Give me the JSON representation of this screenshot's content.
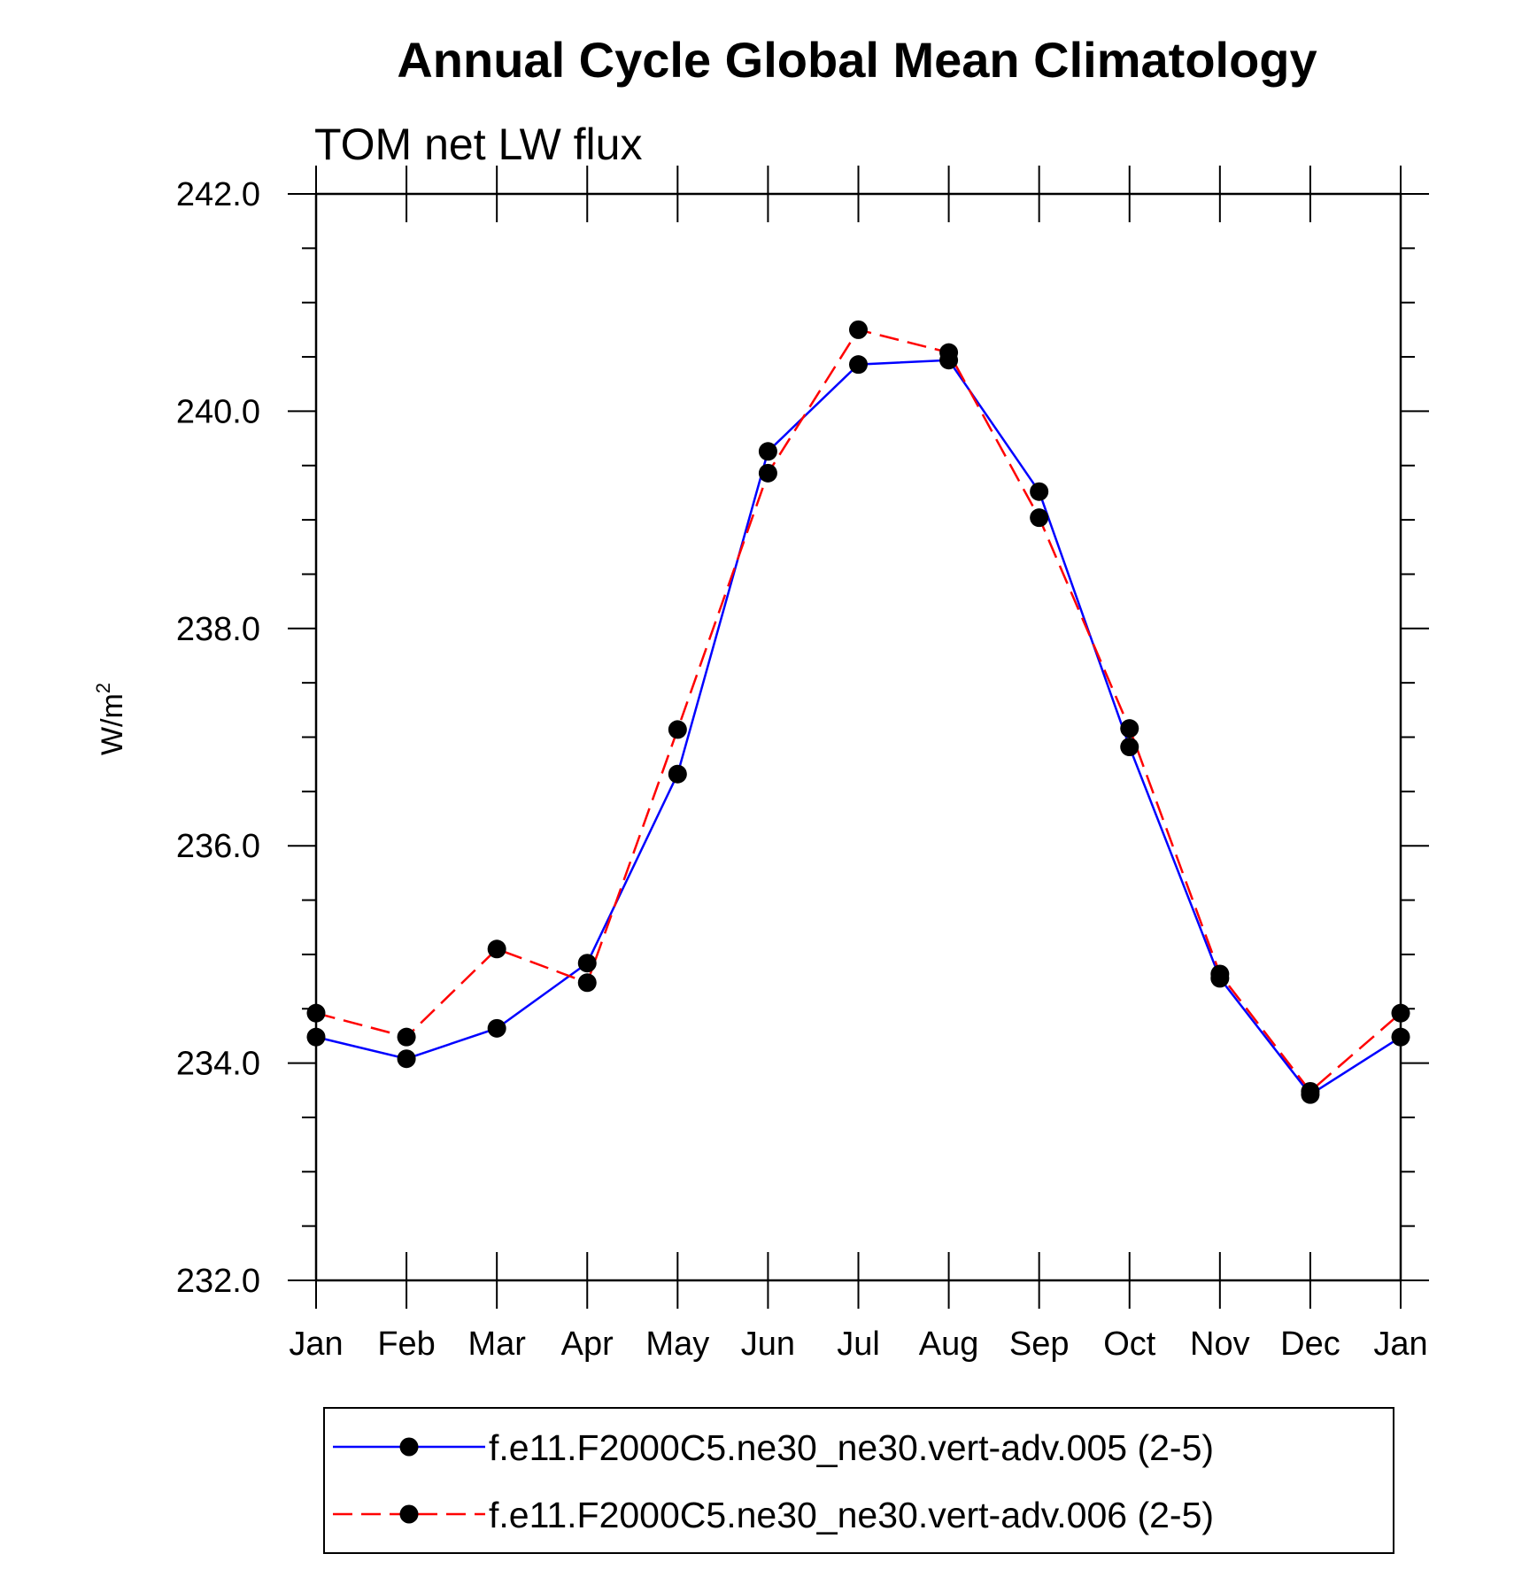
{
  "chart_data": {
    "type": "line",
    "title": "Annual Cycle Global Mean Climatology",
    "subtitle": "TOM net LW flux",
    "ylabel_base": "W/m",
    "ylabel_sup": "2",
    "xlabel": "",
    "categories": [
      "Jan",
      "Feb",
      "Mar",
      "Apr",
      "May",
      "Jun",
      "Jul",
      "Aug",
      "Sep",
      "Oct",
      "Nov",
      "Dec",
      "Jan"
    ],
    "ylim": [
      232.0,
      242.0
    ],
    "yticks": [
      232.0,
      234.0,
      236.0,
      238.0,
      240.0,
      242.0
    ],
    "ytick_labels": [
      "232.0",
      "234.0",
      "236.0",
      "238.0",
      "240.0",
      "242.0"
    ],
    "y_minor_step": 0.5,
    "grid": false,
    "legend_position": "bottom",
    "series": [
      {
        "name": "f.e11.F2000C5.ne30_ne30.vert-adv.005 (2-5)",
        "color": "#0000ff",
        "line_style": "solid",
        "marker": "filled-circle",
        "values": [
          234.24,
          234.04,
          234.32,
          234.92,
          236.66,
          239.63,
          240.43,
          240.47,
          239.26,
          236.91,
          234.78,
          233.71,
          234.24
        ]
      },
      {
        "name": "f.e11.F2000C5.ne30_ne30.vert-adv.006 (2-5)",
        "color": "#ff0000",
        "line_style": "dashed",
        "marker": "filled-circle",
        "values": [
          234.46,
          234.24,
          235.05,
          234.74,
          237.07,
          239.43,
          240.75,
          240.54,
          239.02,
          237.08,
          234.82,
          233.74,
          234.46
        ]
      }
    ]
  }
}
